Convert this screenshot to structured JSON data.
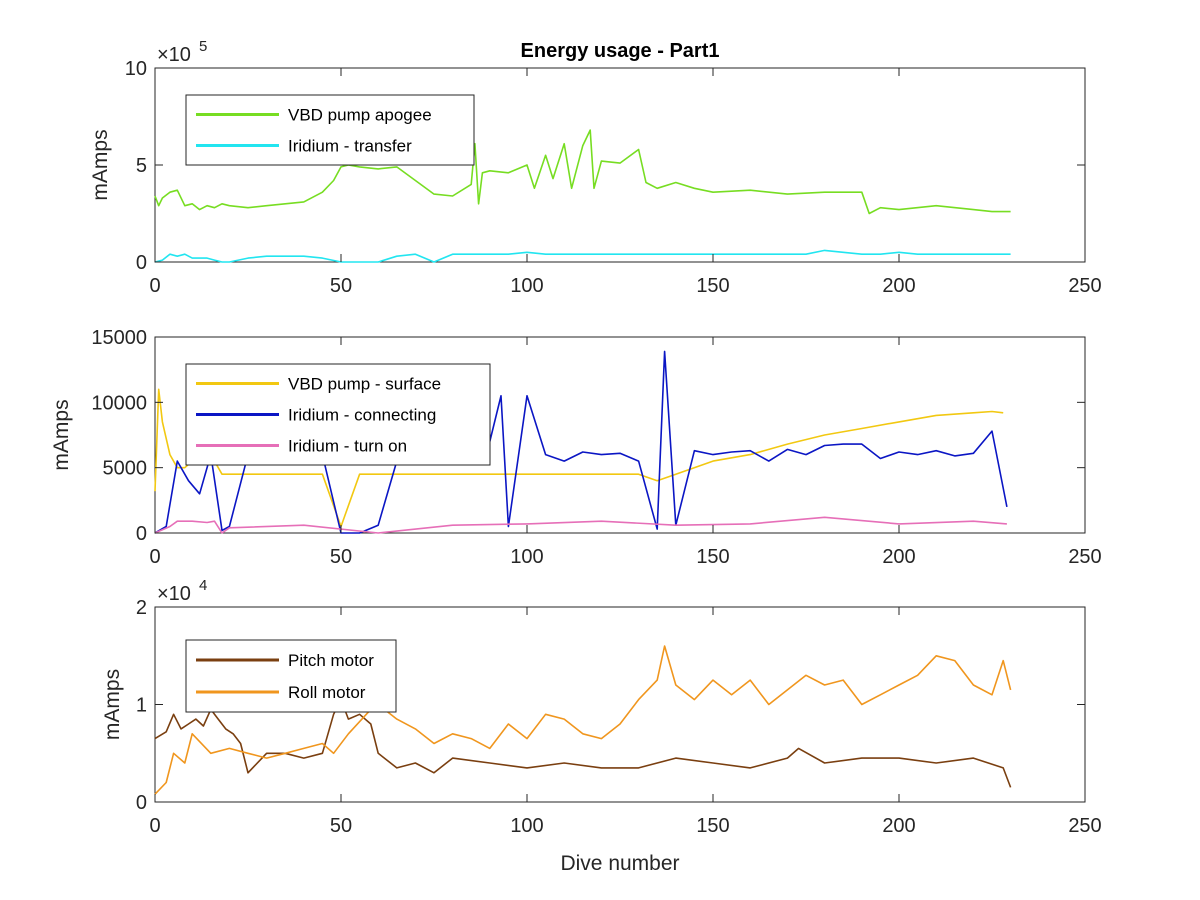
{
  "figure": {
    "title": "Energy usage - Part1",
    "xlabel": "Dive number"
  },
  "chart_data": [
    {
      "type": "line",
      "title": "Energy usage - Part1",
      "xlabel": "",
      "ylabel": "mAmps",
      "xlim": [
        0,
        250
      ],
      "ylim": [
        0,
        1000000
      ],
      "xticks": [
        0,
        50,
        100,
        150,
        200,
        250
      ],
      "xtick_labels": [
        "0",
        "50",
        "100",
        "150",
        "200",
        "250"
      ],
      "yticks": [
        0,
        500000,
        1000000
      ],
      "ytick_labels": [
        "0",
        "5",
        "10"
      ],
      "y_exponent": "10",
      "y_exponent_power": "5",
      "legend_position": "top-left",
      "series": [
        {
          "name": "VBD pump apogee",
          "color": "#77dd22",
          "x": [
            0,
            1,
            2,
            4,
            6,
            8,
            10,
            12,
            14,
            16,
            18,
            20,
            25,
            30,
            35,
            40,
            45,
            48,
            50,
            52,
            55,
            60,
            65,
            70,
            75,
            80,
            85,
            86,
            87,
            88,
            90,
            95,
            100,
            102,
            105,
            107,
            110,
            112,
            115,
            117,
            118,
            120,
            125,
            130,
            132,
            135,
            140,
            145,
            150,
            160,
            170,
            180,
            190,
            192,
            195,
            200,
            210,
            220,
            225,
            230
          ],
          "values": [
            340000,
            290000,
            330000,
            360000,
            370000,
            290000,
            300000,
            270000,
            290000,
            280000,
            300000,
            290000,
            280000,
            290000,
            300000,
            310000,
            360000,
            420000,
            490000,
            500000,
            490000,
            480000,
            490000,
            420000,
            350000,
            340000,
            400000,
            610000,
            300000,
            460000,
            470000,
            460000,
            500000,
            380000,
            550000,
            430000,
            610000,
            380000,
            600000,
            680000,
            380000,
            520000,
            510000,
            580000,
            410000,
            380000,
            410000,
            380000,
            360000,
            370000,
            350000,
            360000,
            360000,
            250000,
            280000,
            270000,
            290000,
            270000,
            260000,
            260000
          ]
        },
        {
          "name": "Iridium - transfer",
          "color": "#22e5f0",
          "x": [
            0,
            2,
            4,
            6,
            8,
            10,
            12,
            14,
            16,
            18,
            20,
            25,
            30,
            35,
            40,
            45,
            50,
            55,
            60,
            65,
            70,
            75,
            80,
            85,
            90,
            95,
            100,
            105,
            110,
            115,
            120,
            125,
            130,
            135,
            140,
            145,
            150,
            155,
            160,
            165,
            170,
            175,
            180,
            185,
            190,
            195,
            200,
            205,
            210,
            215,
            220,
            225,
            230
          ],
          "values": [
            0,
            10000,
            40000,
            30000,
            40000,
            20000,
            20000,
            20000,
            10000,
            0,
            0,
            20000,
            30000,
            30000,
            30000,
            20000,
            0,
            0,
            0,
            30000,
            40000,
            0,
            40000,
            40000,
            40000,
            40000,
            50000,
            40000,
            40000,
            40000,
            40000,
            40000,
            40000,
            40000,
            40000,
            40000,
            40000,
            40000,
            40000,
            40000,
            40000,
            40000,
            60000,
            50000,
            40000,
            40000,
            50000,
            40000,
            40000,
            40000,
            40000,
            40000,
            40000
          ]
        }
      ]
    },
    {
      "type": "line",
      "title": "",
      "xlabel": "",
      "ylabel": "mAmps",
      "xlim": [
        0,
        250
      ],
      "ylim": [
        0,
        15000
      ],
      "xticks": [
        0,
        50,
        100,
        150,
        200,
        250
      ],
      "xtick_labels": [
        "0",
        "50",
        "100",
        "150",
        "200",
        "250"
      ],
      "yticks": [
        0,
        5000,
        10000,
        15000
      ],
      "ytick_labels": [
        "0",
        "5000",
        "10000",
        "15000"
      ],
      "legend_position": "top-left",
      "series": [
        {
          "name": "VBD pump - surface",
          "color": "#f2c811",
          "x": [
            0,
            1,
            2,
            4,
            6,
            8,
            10,
            12,
            14,
            16,
            18,
            20,
            22,
            25,
            30,
            35,
            40,
            45,
            50,
            55,
            58,
            60,
            65,
            70,
            75,
            80,
            85,
            90,
            95,
            100,
            110,
            120,
            130,
            135,
            140,
            150,
            160,
            170,
            180,
            190,
            200,
            210,
            220,
            225,
            228
          ],
          "values": [
            3200,
            11000,
            8500,
            6000,
            5000,
            5000,
            5500,
            6000,
            6000,
            5500,
            4500,
            4500,
            4500,
            4500,
            4500,
            4500,
            4500,
            4500,
            500,
            4500,
            4500,
            4500,
            4500,
            4500,
            4500,
            4500,
            4500,
            4500,
            4500,
            4500,
            4500,
            4500,
            4500,
            4000,
            4500,
            5500,
            6000,
            6800,
            7500,
            8000,
            8500,
            9000,
            9200,
            9300,
            9200
          ]
        },
        {
          "name": "Iridium - connecting",
          "color": "#0b16c4",
          "x": [
            0,
            3,
            6,
            9,
            12,
            15,
            18,
            20,
            25,
            30,
            35,
            40,
            45,
            50,
            55,
            60,
            65,
            70,
            75,
            80,
            85,
            90,
            93,
            95,
            100,
            105,
            110,
            115,
            120,
            125,
            130,
            135,
            137,
            140,
            145,
            150,
            155,
            160,
            165,
            170,
            175,
            180,
            185,
            190,
            195,
            200,
            205,
            210,
            215,
            220,
            225,
            229
          ],
          "values": [
            0,
            500,
            5500,
            4000,
            3000,
            6000,
            200,
            500,
            6000,
            6200,
            6300,
            6200,
            6000,
            0,
            0,
            600,
            5500,
            6000,
            5800,
            6000,
            6100,
            7000,
            10500,
            500,
            10500,
            6000,
            5500,
            6200,
            6000,
            6100,
            5500,
            300,
            13900,
            600,
            6300,
            6000,
            6200,
            6300,
            5500,
            6400,
            6000,
            6700,
            6800,
            6800,
            5700,
            6200,
            6000,
            6300,
            5900,
            6100,
            7800,
            2000
          ]
        },
        {
          "name": "Iridium - turn on",
          "color": "#e66fb8",
          "x": [
            0,
            4,
            6,
            10,
            14,
            16,
            18,
            20,
            40,
            60,
            80,
            100,
            120,
            140,
            160,
            180,
            200,
            220,
            229
          ],
          "values": [
            0,
            500,
            900,
            900,
            800,
            900,
            0,
            400,
            600,
            0,
            600,
            700,
            900,
            600,
            700,
            1200,
            700,
            900,
            700
          ]
        }
      ]
    },
    {
      "type": "line",
      "title": "",
      "xlabel": "Dive number",
      "ylabel": "mAmps",
      "xlim": [
        0,
        250
      ],
      "ylim": [
        0,
        20000
      ],
      "xticks": [
        0,
        50,
        100,
        150,
        200,
        250
      ],
      "xtick_labels": [
        "0",
        "50",
        "100",
        "150",
        "200",
        "250"
      ],
      "yticks": [
        0,
        10000,
        20000
      ],
      "ytick_labels": [
        "0",
        "1",
        "2"
      ],
      "y_exponent": "10",
      "y_exponent_power": "4",
      "legend_position": "top-left",
      "series": [
        {
          "name": "Pitch motor",
          "color": "#7a3f10",
          "x": [
            0,
            3,
            5,
            7,
            9,
            11,
            13,
            15,
            17,
            19,
            21,
            23,
            25,
            30,
            35,
            40,
            45,
            48,
            50,
            52,
            55,
            58,
            60,
            65,
            70,
            75,
            80,
            90,
            100,
            110,
            120,
            130,
            140,
            150,
            160,
            170,
            173,
            180,
            190,
            200,
            210,
            220,
            228,
            230
          ],
          "values": [
            6500,
            7200,
            9000,
            7500,
            8000,
            8500,
            7800,
            9500,
            8500,
            7500,
            7000,
            6000,
            3000,
            5000,
            5000,
            4500,
            5000,
            9000,
            10500,
            8500,
            9000,
            8000,
            5000,
            3500,
            4000,
            3000,
            4500,
            4000,
            3500,
            4000,
            3500,
            3500,
            4500,
            4000,
            3500,
            4500,
            5500,
            4000,
            4500,
            4500,
            4000,
            4500,
            3500,
            1500
          ]
        },
        {
          "name": "Roll motor",
          "color": "#f0961e",
          "x": [
            0,
            3,
            5,
            8,
            10,
            15,
            20,
            25,
            30,
            35,
            40,
            45,
            48,
            52,
            58,
            60,
            65,
            70,
            75,
            80,
            85,
            90,
            95,
            100,
            105,
            110,
            115,
            120,
            125,
            130,
            135,
            137,
            140,
            145,
            150,
            155,
            160,
            165,
            170,
            175,
            180,
            185,
            190,
            195,
            200,
            205,
            210,
            215,
            220,
            225,
            228,
            230
          ],
          "values": [
            800,
            2000,
            5000,
            4000,
            7000,
            5000,
            5500,
            5000,
            4500,
            5000,
            5500,
            6000,
            5000,
            7000,
            9500,
            10000,
            8500,
            7500,
            6000,
            7000,
            6500,
            5500,
            8000,
            6500,
            9000,
            8500,
            7000,
            6500,
            8000,
            10500,
            12500,
            16000,
            12000,
            10500,
            12500,
            11000,
            12500,
            10000,
            11500,
            13000,
            12000,
            12500,
            10000,
            11000,
            12000,
            13000,
            15000,
            14500,
            12000,
            11000,
            14500,
            11500
          ]
        }
      ]
    }
  ]
}
